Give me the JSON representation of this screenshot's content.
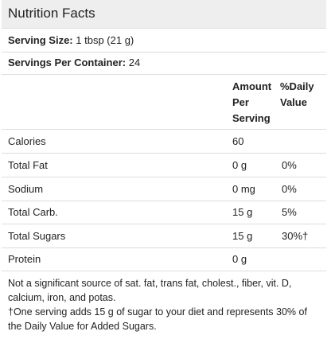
{
  "title": "Nutrition Facts",
  "serving_size": {
    "label": "Serving Size:",
    "value": "1 tbsp (21 g)"
  },
  "servings_per_container": {
    "label": "Servings Per Container:",
    "value": "24"
  },
  "columns": {
    "amount": "Amount Per Serving",
    "daily_value": "%Daily Value"
  },
  "nutrients": [
    {
      "name": "Calories",
      "amount": "60",
      "dv": ""
    },
    {
      "name": "Total Fat",
      "amount": "0 g",
      "dv": "0%"
    },
    {
      "name": "Sodium",
      "amount": "0 mg",
      "dv": "0%"
    },
    {
      "name": "Total Carb.",
      "amount": "15 g",
      "dv": "5%"
    },
    {
      "name": "Total Sugars",
      "amount": "15 g",
      "dv": "30%†"
    },
    {
      "name": "Protein",
      "amount": "0 g",
      "dv": ""
    }
  ],
  "footnotes": [
    "Not a significant source of sat. fat, trans fat, cholest., fiber, vit. D, calcium, iron, and potas.",
    "†One serving adds 15 g of sugar to your diet and represents 30% of the Daily Value for Added Sugars."
  ]
}
